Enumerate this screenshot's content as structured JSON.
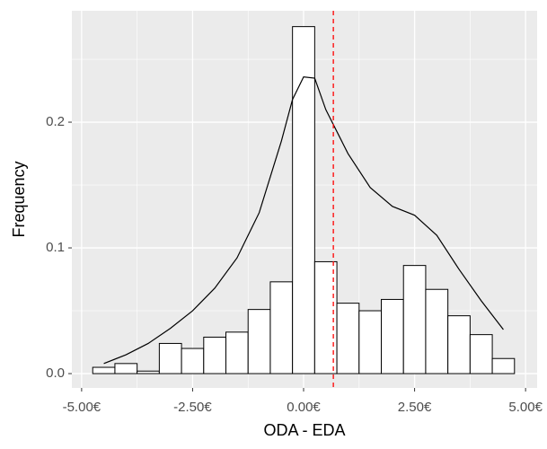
{
  "chart_data": {
    "type": "histogram",
    "xlabel": "ODA - EDA",
    "ylabel": "Frequency",
    "bins": [
      -4.75,
      -4.25,
      -3.75,
      -3.25,
      -2.75,
      -2.25,
      -1.75,
      -1.25,
      -0.75,
      -0.25,
      0.25,
      0.75,
      1.25,
      1.75,
      2.25,
      2.75,
      3.25,
      3.75,
      4.25,
      4.75
    ],
    "values": [
      0.005,
      0.008,
      0.002,
      0.024,
      0.02,
      0.029,
      0.033,
      0.051,
      0.073,
      0.276,
      0.089,
      0.056,
      0.05,
      0.059,
      0.086,
      0.067,
      0.046,
      0.031,
      0.012
    ],
    "fill": "#ffffff",
    "edge_color": "#000000",
    "density": {
      "x": [
        -4.5,
        -4,
        -3.5,
        -3,
        -2.5,
        -2,
        -1.5,
        -1,
        -0.5,
        -0.25,
        0,
        0.25,
        0.5,
        1,
        1.5,
        2,
        2.5,
        3,
        3.5,
        4,
        4.5
      ],
      "values": [
        0.008,
        0.015,
        0.024,
        0.036,
        0.05,
        0.068,
        0.092,
        0.128,
        0.185,
        0.218,
        0.236,
        0.235,
        0.21,
        0.175,
        0.148,
        0.133,
        0.126,
        0.11,
        0.083,
        0.058,
        0.035
      ],
      "color": "#000000"
    },
    "vline": {
      "value": 0.67,
      "color": "#ff0000",
      "dashed": true
    },
    "xlim": [
      -5.22,
      5.26
    ],
    "ylim": [
      -0.0114,
      0.2886
    ],
    "xticks": [
      {
        "value": -5,
        "label": "-5.00€"
      },
      {
        "value": -2.5,
        "label": "-2.50€"
      },
      {
        "value": 0,
        "label": "0.00€"
      },
      {
        "value": 2.5,
        "label": "2.50€"
      },
      {
        "value": 5,
        "label": "5.00€"
      }
    ],
    "yticks": [
      {
        "value": 0,
        "label": "0.0"
      },
      0.1,
      0.2
    ],
    "x_minor_grid": [
      -3.75,
      -1.25,
      1.25,
      3.75
    ],
    "y_minor_grid": [
      0.05,
      0.15,
      0.25
    ],
    "grid": true,
    "panel_color": "#ebebeb"
  }
}
